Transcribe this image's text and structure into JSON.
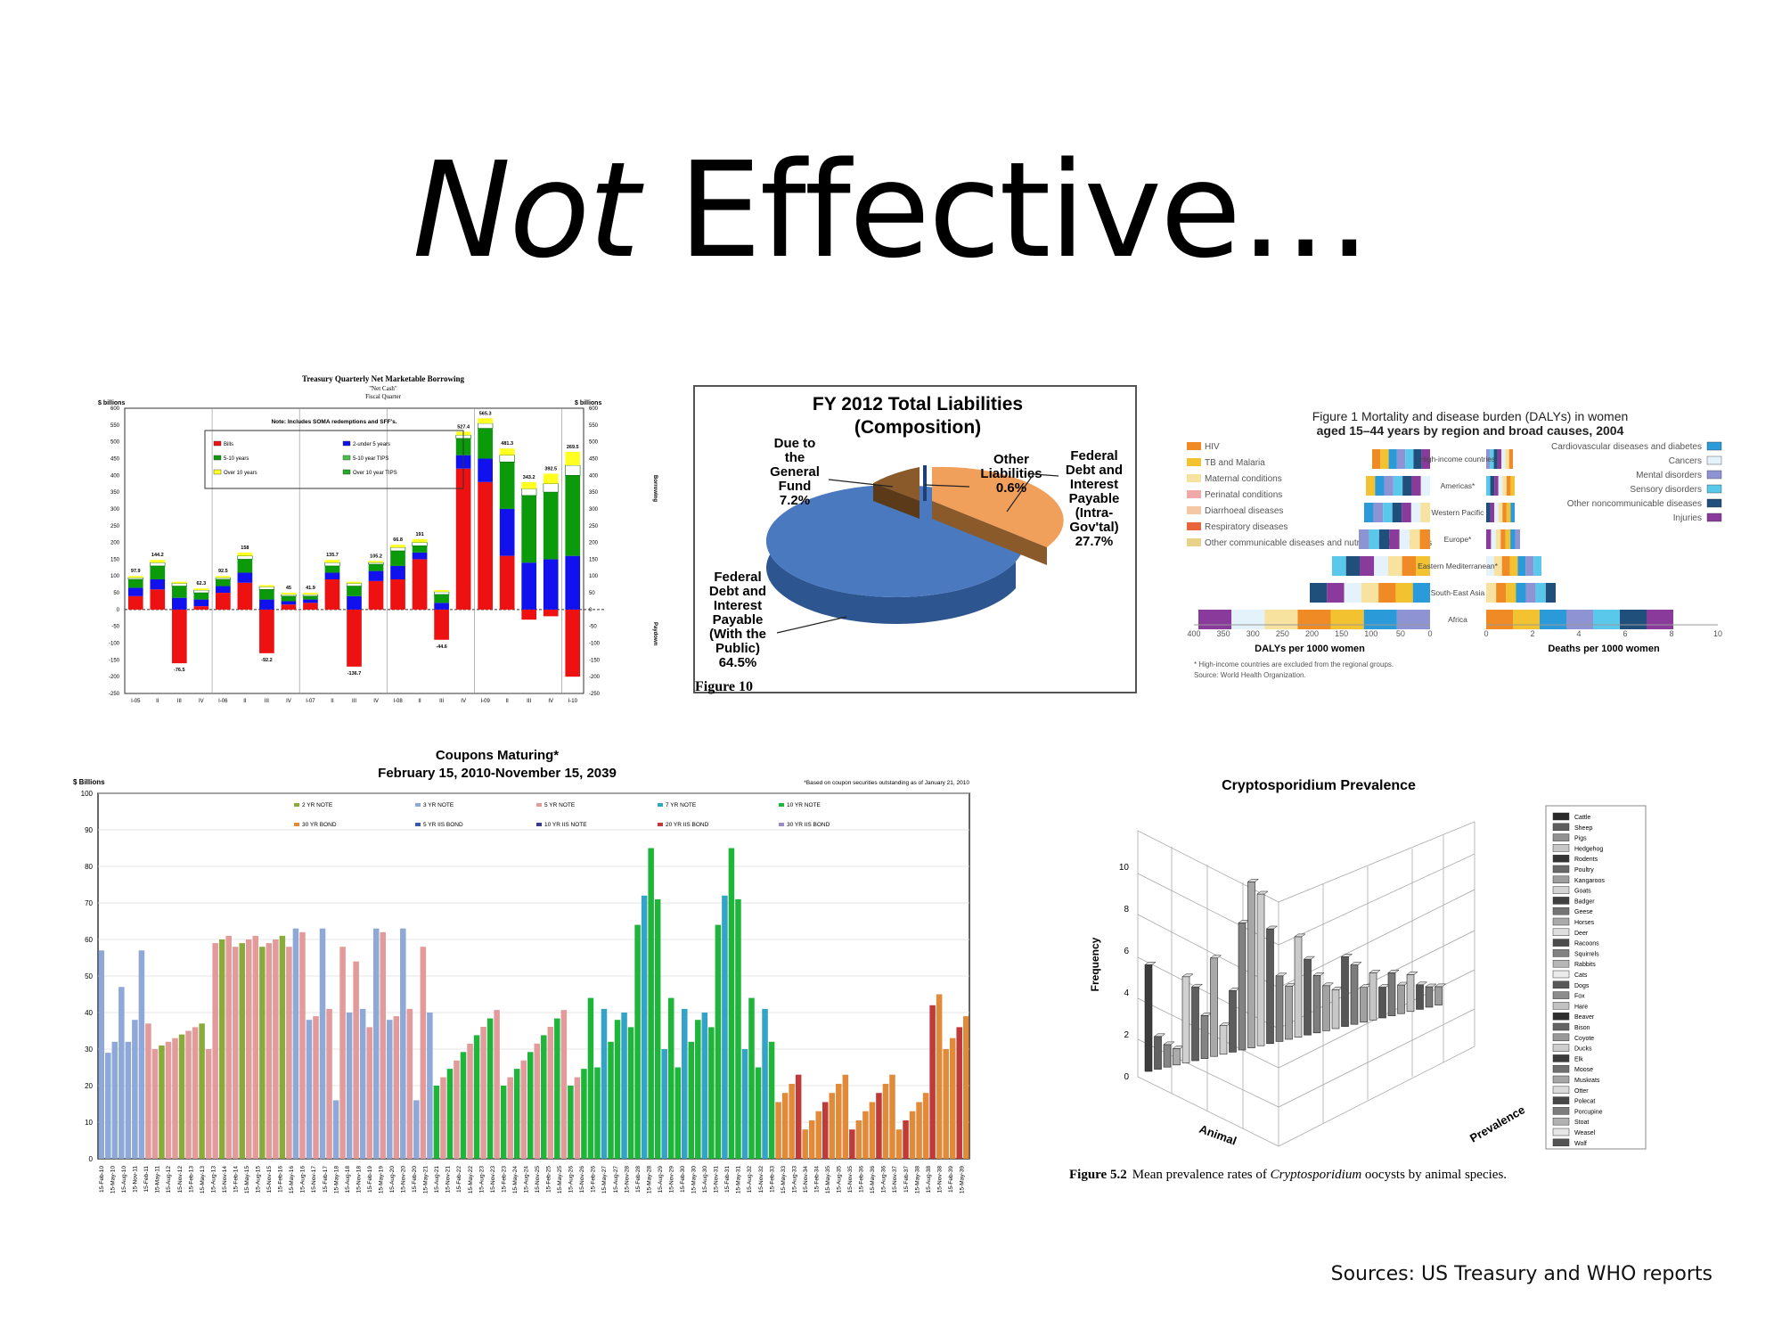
{
  "slide": {
    "title_italic": "Not",
    "title_rest": " Effective…",
    "sources": "Sources: US Treasury and WHO reports"
  },
  "panel1": {
    "title": "Treasury Quarterly Net Marketable Borrowing",
    "subtitle": "\"Net Cash\"",
    "subtitle2": "Fiscal Quarter",
    "left_unit": "$ billions",
    "right_unit": "$ billions",
    "note": "Note: Includes SOMA redemptions and SFF's.",
    "legend": [
      "Bills",
      "2-under 5 years",
      "5-10 years",
      "5-10 year TIPS",
      "Over 10 years",
      "Over 10 year TIPS"
    ],
    "borrowing_label": "Borrowing",
    "paydown_label": "Paydown",
    "colors": {
      "bills": "#ee1111",
      "short": "#1111ee",
      "mid": "#0a9a0a",
      "tips": "#ffffff",
      "long": "#ffff22"
    }
  },
  "chart_data": [
    {
      "type": "bar",
      "title": "Treasury Quarterly Net Marketable Borrowing",
      "ylabel": "$ billions",
      "ylim": [
        -250,
        600
      ],
      "categories": [
        "I-05",
        "II",
        "III",
        "IV",
        "I-06",
        "II",
        "III",
        "IV",
        "I-07",
        "II",
        "III",
        "IV",
        "I-08",
        "II",
        "III",
        "IV",
        "I-09",
        "II",
        "III",
        "IV",
        "I-10"
      ],
      "totals": [
        97.9,
        144.2,
        -76.5,
        62.3,
        92.5,
        158.0,
        -92.2,
        45.0,
        41.9,
        135.7,
        -136.7,
        105.2,
        66.8,
        191.0,
        -44.6,
        527.4,
        565.3,
        481.3,
        343.2,
        392.5,
        269.5
      ],
      "series": [
        {
          "name": "Bills",
          "values": [
            40,
            60,
            -160,
            10,
            50,
            80,
            -130,
            15,
            20,
            90,
            -170,
            85,
            90,
            150,
            -90,
            420,
            380,
            160,
            -30,
            -20,
            -200
          ]
        },
        {
          "name": "2-under 5 years",
          "values": [
            25,
            30,
            35,
            20,
            20,
            30,
            30,
            10,
            10,
            20,
            40,
            30,
            40,
            20,
            20,
            40,
            70,
            140,
            140,
            150,
            160
          ]
        },
        {
          "name": "5-10 years",
          "values": [
            25,
            40,
            35,
            20,
            20,
            40,
            30,
            15,
            10,
            20,
            30,
            20,
            45,
            20,
            25,
            50,
            90,
            140,
            200,
            200,
            240
          ]
        },
        {
          "name": "5-10 year TIPS",
          "values": [
            5,
            10,
            8,
            8,
            5,
            10,
            8,
            5,
            5,
            10,
            8,
            5,
            10,
            10,
            8,
            10,
            15,
            20,
            20,
            25,
            30
          ]
        },
        {
          "name": "Over 10 years",
          "values": [
            5,
            8,
            5,
            5,
            5,
            10,
            5,
            5,
            5,
            8,
            5,
            5,
            8,
            10,
            5,
            10,
            15,
            20,
            20,
            30,
            40
          ]
        }
      ]
    },
    {
      "type": "pie",
      "title": "FY 2012 Total Liabilities (Composition)",
      "slices": [
        {
          "label": "Federal Debt and Interest Payable (With the Public)",
          "value": 64.5,
          "color": "#4a79bf"
        },
        {
          "label": "Federal Debt and Interest Payable (Intra-Gov'tal)",
          "value": 27.7,
          "color": "#f0a05a"
        },
        {
          "label": "Due to the General Fund",
          "value": 7.2,
          "color": "#8a5a2a"
        },
        {
          "label": "Other Liabilities",
          "value": 0.6,
          "color": "#1f3f7a"
        }
      ]
    },
    {
      "type": "bar",
      "title": "Coupons Maturing* February 15, 2010-November 15, 2039",
      "ylabel": "$ Billions",
      "ylim": [
        0,
        100
      ],
      "series": [
        {
          "name": "2 YR NOTE"
        },
        {
          "name": "3 YR NOTE"
        },
        {
          "name": "5 YR NOTE"
        },
        {
          "name": "7 YR NOTE"
        },
        {
          "name": "10 YR NOTE"
        },
        {
          "name": "30 YR BOND"
        },
        {
          "name": "5 YR IIS BOND"
        },
        {
          "name": "10 YR IIS NOTE"
        },
        {
          "name": "20 YR IIS BOND"
        },
        {
          "name": "30 YR IIS BOND"
        }
      ]
    },
    {
      "type": "bar",
      "title": "Cryptosporidium Prevalence",
      "xlabel": "Animal",
      "ylabel": "Frequency",
      "zlabel": "Prevalence",
      "ylim": [
        0,
        10
      ]
    }
  ],
  "panel2": {
    "title_line1": "FY 2012 Total Liabilities",
    "title_line2": "(Composition)",
    "lbl_due": [
      "Due to",
      "the",
      "General",
      "Fund",
      "7.2%"
    ],
    "lbl_other": [
      "Other",
      "Liabilities",
      "0.6%"
    ],
    "lbl_intra": [
      "Federal",
      "Debt and",
      "Interest",
      "Payable",
      "(Intra-",
      "Gov'tal)",
      "27.7%"
    ],
    "lbl_public": [
      "Federal",
      "Debt and",
      "Interest",
      "Payable",
      "(With the",
      "Public)",
      "64.5%"
    ],
    "figure": "Figure 10"
  },
  "panel3": {
    "title_line1": "Figure 1 Mortality and disease burden (DALYs) in women",
    "title_line2": "aged 15–44 years by region and broad causes, 2004",
    "legend_left": [
      "HIV",
      "TB and Malaria",
      "Maternal conditions",
      "Perinatal conditions",
      "Diarrhoeal diseases",
      "Respiratory diseases",
      "Other communicable diseases and nutritional deficiencies"
    ],
    "legend_right": [
      "Cardiovascular diseases and diabetes",
      "Cancers",
      "Mental disorders",
      "Sensory disorders",
      "Other noncommunicable diseases",
      "Injuries"
    ],
    "regions": [
      "High-income countries",
      "Americas*",
      "Western Pacific",
      "Europe*",
      "Eastern Mediterranean*",
      "South-East Asia",
      "Africa"
    ],
    "x_left_ticks": [
      "400",
      "350",
      "300",
      "250",
      "200",
      "150",
      "100",
      "50",
      "0"
    ],
    "x_right_ticks": [
      "0",
      "2",
      "4",
      "6",
      "8",
      "10"
    ],
    "x_left_label": "DALYs per 1000 women",
    "x_right_label": "Deaths per 1000 women",
    "footnote1": "* High-income countries are excluded from the regional groups.",
    "footnote2": "Source: World Health Organization."
  },
  "panel4": {
    "title": "Coupons Maturing*",
    "subtitle": "February 15, 2010-November 15, 2039",
    "note": "*Based on coupon securities outstanding as of January 21, 2010",
    "unit": "$ Billions",
    "y_ticks": [
      "0",
      "10",
      "20",
      "30",
      "40",
      "50",
      "60",
      "70",
      "80",
      "90",
      "100"
    ]
  },
  "panel5": {
    "title": "Cryptosporidium Prevalence",
    "y_label": "Frequency",
    "x_label": "Animal",
    "z_label": "Prevalence",
    "y_ticks": [
      "0",
      "2",
      "4",
      "6",
      "8",
      "10"
    ],
    "legend": [
      "Cattle",
      "Sheep",
      "Pigs",
      "Hedgehog",
      "Rodents",
      "Poultry",
      "Kangaroos",
      "Goats",
      "Badger",
      "Geese",
      "Horses",
      "Deer",
      "Racoons",
      "Squirrels",
      "Rabbits",
      "Cats",
      "Dogs",
      "Fox",
      "Hare",
      "Beaver",
      "Bison",
      "Coyote",
      "Ducks",
      "Elk",
      "Moose",
      "Muskrats",
      "Otter",
      "Polecat",
      "Porcupine",
      "Stoat",
      "Weasel",
      "Wolf"
    ],
    "caption_bold": "Figure 5.2",
    "caption_text": "Mean prevalence rates of ",
    "caption_italic": "Cryptosporidium",
    "caption_end": " oocysts by animal species."
  }
}
